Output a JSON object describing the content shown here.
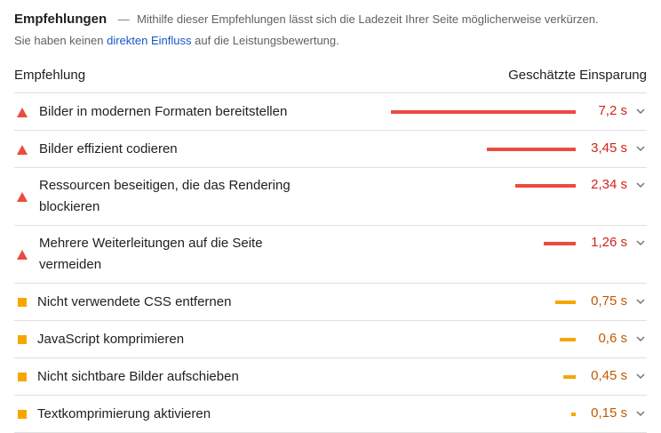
{
  "header": {
    "title": "Empfehlungen",
    "separator": "—",
    "description": "Mithilfe dieser Empfehlungen lässt sich die Ladezeit Ihrer Seite möglicherweise verkürzen.",
    "line2_pre": "Sie haben keinen",
    "link_text": "direkten Einfluss",
    "line2_post": "auf die Leistungsbewertung."
  },
  "columns": {
    "left": "Empfehlung",
    "right": "Geschätzte Einsparung"
  },
  "colors": {
    "fail": "#eb4b3f",
    "fail_text": "#d2231a",
    "average": "#f7a600",
    "average_text": "#c35a00",
    "link": "#1a56c9"
  },
  "rows": [
    {
      "label": "Bilder in modernen Formaten bereitstellen",
      "value": "7,2 s",
      "seconds": 7.2,
      "severity": "fail",
      "icon": "warning-triangle-icon"
    },
    {
      "label": "Bilder effizient codieren",
      "value": "3,45 s",
      "seconds": 3.45,
      "severity": "fail",
      "icon": "warning-triangle-icon"
    },
    {
      "label": "Ressourcen beseitigen, die das Rendering blockieren",
      "value": "2,34 s",
      "seconds": 2.34,
      "severity": "fail",
      "icon": "warning-triangle-icon"
    },
    {
      "label": "Mehrere Weiterleitungen auf die Seite vermeiden",
      "value": "1,26 s",
      "seconds": 1.26,
      "severity": "fail",
      "icon": "warning-triangle-icon"
    },
    {
      "label": "Nicht verwendete CSS entfernen",
      "value": "0,75 s",
      "seconds": 0.75,
      "severity": "average",
      "icon": "average-square-icon"
    },
    {
      "label": "JavaScript komprimieren",
      "value": "0,6 s",
      "seconds": 0.6,
      "severity": "average",
      "icon": "average-square-icon"
    },
    {
      "label": "Nicht sichtbare Bilder aufschieben",
      "value": "0,45 s",
      "seconds": 0.45,
      "severity": "average",
      "icon": "average-square-icon"
    },
    {
      "label": "Textkomprimierung aktivieren",
      "value": "0,15 s",
      "seconds": 0.15,
      "severity": "average",
      "icon": "average-square-icon"
    }
  ]
}
